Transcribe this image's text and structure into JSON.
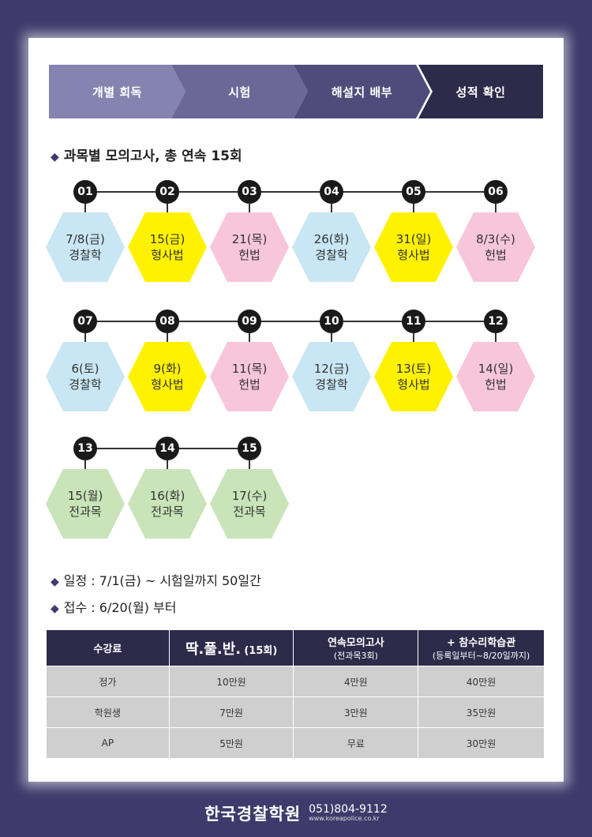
{
  "steps": [
    "개별 회독",
    "시험",
    "해설지 배부",
    "성적 확인"
  ],
  "step_colors": [
    "#8583b0",
    "#6b6898",
    "#4f4b7b",
    "#2e2a4a"
  ],
  "section_title": "과목별 모의고사, 총 연속 15회",
  "bullet_symbol": "◆",
  "exams": [
    {
      "num": "01",
      "date": "7/8(금)",
      "subject": "경찰학",
      "color": "blue"
    },
    {
      "num": "02",
      "date": "15(금)",
      "subject": "형사법",
      "color": "yellow"
    },
    {
      "num": "03",
      "date": "21(목)",
      "subject": "헌법",
      "color": "pink"
    },
    {
      "num": "04",
      "date": "26(화)",
      "subject": "경찰학",
      "color": "blue"
    },
    {
      "num": "05",
      "date": "31(일)",
      "subject": "형사법",
      "color": "yellow"
    },
    {
      "num": "06",
      "date": "8/3(수)",
      "subject": "헌법",
      "color": "pink"
    },
    {
      "num": "07",
      "date": "6(토)",
      "subject": "경찰학",
      "color": "blue"
    },
    {
      "num": "08",
      "date": "9(화)",
      "subject": "형사법",
      "color": "yellow"
    },
    {
      "num": "09",
      "date": "11(목)",
      "subject": "헌법",
      "color": "pink"
    },
    {
      "num": "10",
      "date": "12(금)",
      "subject": "경찰학",
      "color": "blue"
    },
    {
      "num": "11",
      "date": "13(토)",
      "subject": "형사법",
      "color": "yellow"
    },
    {
      "num": "12",
      "date": "14(일)",
      "subject": "헌법",
      "color": "pink"
    },
    {
      "num": "13",
      "date": "15(월)",
      "subject": "전과목",
      "color": "green"
    },
    {
      "num": "14",
      "date": "16(화)",
      "subject": "전과목",
      "color": "green"
    },
    {
      "num": "15",
      "date": "17(수)",
      "subject": "전과목",
      "color": "green"
    }
  ],
  "schedule": "일정 : 7/1(금) ~ 시험일까지 50일간",
  "registration": "접수 : 6/20(월) 부터",
  "fee_table": {
    "headers": {
      "col1": "수강료",
      "col2_main": "딱.풀.반.",
      "col2_sub": "(15회)",
      "col3_main": "연속모의고사",
      "col3_sub": "(전과목3회)",
      "col4_main": "+ 참수리학습관",
      "col4_sub": "(등록일부터~8/20일까지)"
    },
    "rows": [
      [
        "정가",
        "10만원",
        "4만원",
        "40만원"
      ],
      [
        "학원생",
        "7만원",
        "3만원",
        "35만원"
      ],
      [
        "AP",
        "5만원",
        "무료",
        "30만원"
      ]
    ]
  },
  "footer": {
    "brand": "한국경찰학원",
    "phone": "051)804-9112",
    "url": "www.koreapolice.co.kr"
  }
}
